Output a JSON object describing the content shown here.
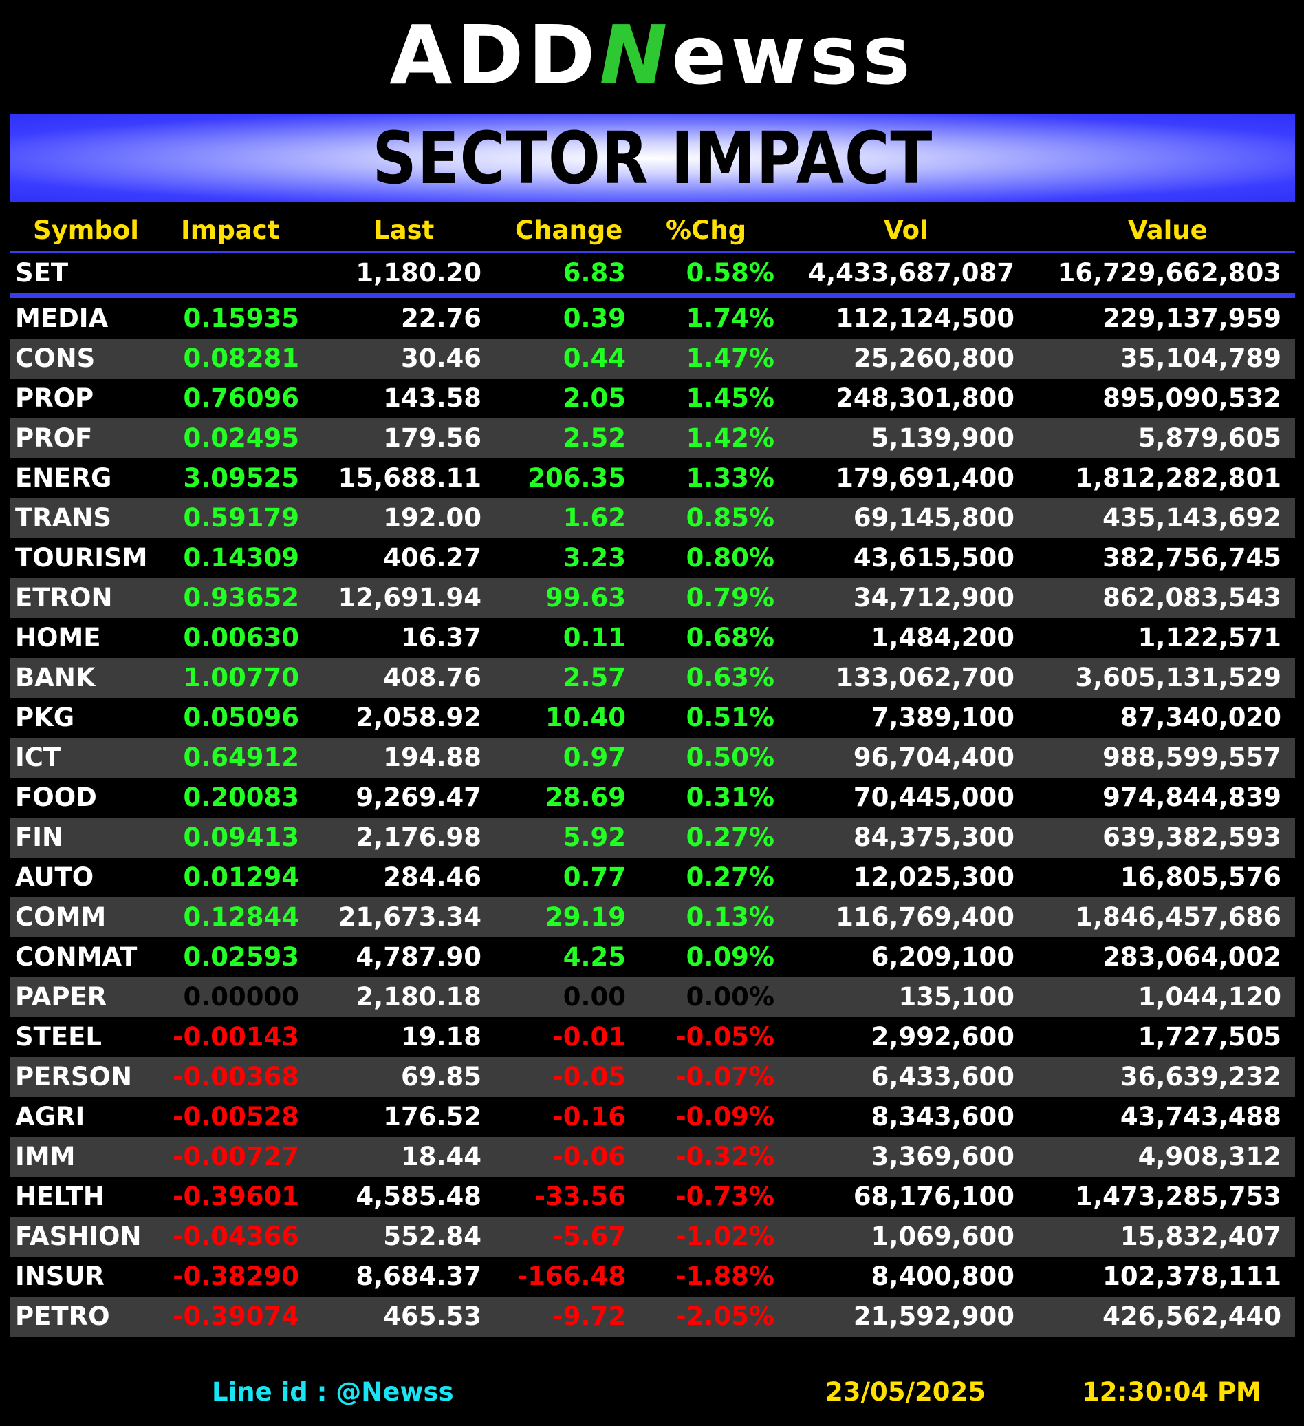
{
  "brand": {
    "part1": "ADD",
    "part2": "N",
    "part3": "ewss"
  },
  "title": "SECTOR IMPACT",
  "columns": [
    "Symbol",
    "Impact",
    "Last",
    "Change",
    "%Chg",
    "Vol",
    "Value"
  ],
  "index_row": {
    "symbol": "SET",
    "impact": "",
    "last": "1,180.20",
    "change": "6.83",
    "pct": "0.58%",
    "vol": "4,433,687,087",
    "value": "16,729,662,803"
  },
  "rows": [
    {
      "symbol": "MEDIA",
      "impact": "0.15935",
      "last": "22.76",
      "change": "0.39",
      "pct": "1.74%",
      "vol": "112,124,500",
      "value": "229,137,959",
      "dir": "pos"
    },
    {
      "symbol": "CONS",
      "impact": "0.08281",
      "last": "30.46",
      "change": "0.44",
      "pct": "1.47%",
      "vol": "25,260,800",
      "value": "35,104,789",
      "dir": "pos"
    },
    {
      "symbol": "PROP",
      "impact": "0.76096",
      "last": "143.58",
      "change": "2.05",
      "pct": "1.45%",
      "vol": "248,301,800",
      "value": "895,090,532",
      "dir": "pos"
    },
    {
      "symbol": "PROF",
      "impact": "0.02495",
      "last": "179.56",
      "change": "2.52",
      "pct": "1.42%",
      "vol": "5,139,900",
      "value": "5,879,605",
      "dir": "pos"
    },
    {
      "symbol": "ENERG",
      "impact": "3.09525",
      "last": "15,688.11",
      "change": "206.35",
      "pct": "1.33%",
      "vol": "179,691,400",
      "value": "1,812,282,801",
      "dir": "pos"
    },
    {
      "symbol": "TRANS",
      "impact": "0.59179",
      "last": "192.00",
      "change": "1.62",
      "pct": "0.85%",
      "vol": "69,145,800",
      "value": "435,143,692",
      "dir": "pos"
    },
    {
      "symbol": "TOURISM",
      "impact": "0.14309",
      "last": "406.27",
      "change": "3.23",
      "pct": "0.80%",
      "vol": "43,615,500",
      "value": "382,756,745",
      "dir": "pos"
    },
    {
      "symbol": "ETRON",
      "impact": "0.93652",
      "last": "12,691.94",
      "change": "99.63",
      "pct": "0.79%",
      "vol": "34,712,900",
      "value": "862,083,543",
      "dir": "pos"
    },
    {
      "symbol": "HOME",
      "impact": "0.00630",
      "last": "16.37",
      "change": "0.11",
      "pct": "0.68%",
      "vol": "1,484,200",
      "value": "1,122,571",
      "dir": "pos"
    },
    {
      "symbol": "BANK",
      "impact": "1.00770",
      "last": "408.76",
      "change": "2.57",
      "pct": "0.63%",
      "vol": "133,062,700",
      "value": "3,605,131,529",
      "dir": "pos"
    },
    {
      "symbol": "PKG",
      "impact": "0.05096",
      "last": "2,058.92",
      "change": "10.40",
      "pct": "0.51%",
      "vol": "7,389,100",
      "value": "87,340,020",
      "dir": "pos"
    },
    {
      "symbol": "ICT",
      "impact": "0.64912",
      "last": "194.88",
      "change": "0.97",
      "pct": "0.50%",
      "vol": "96,704,400",
      "value": "988,599,557",
      "dir": "pos"
    },
    {
      "symbol": "FOOD",
      "impact": "0.20083",
      "last": "9,269.47",
      "change": "28.69",
      "pct": "0.31%",
      "vol": "70,445,000",
      "value": "974,844,839",
      "dir": "pos"
    },
    {
      "symbol": "FIN",
      "impact": "0.09413",
      "last": "2,176.98",
      "change": "5.92",
      "pct": "0.27%",
      "vol": "84,375,300",
      "value": "639,382,593",
      "dir": "pos"
    },
    {
      "symbol": "AUTO",
      "impact": "0.01294",
      "last": "284.46",
      "change": "0.77",
      "pct": "0.27%",
      "vol": "12,025,300",
      "value": "16,805,576",
      "dir": "pos"
    },
    {
      "symbol": "COMM",
      "impact": "0.12844",
      "last": "21,673.34",
      "change": "29.19",
      "pct": "0.13%",
      "vol": "116,769,400",
      "value": "1,846,457,686",
      "dir": "pos"
    },
    {
      "symbol": "CONMAT",
      "impact": "0.02593",
      "last": "4,787.90",
      "change": "4.25",
      "pct": "0.09%",
      "vol": "6,209,100",
      "value": "283,064,002",
      "dir": "pos"
    },
    {
      "symbol": "PAPER",
      "impact": "0.00000",
      "last": "2,180.18",
      "change": "0.00",
      "pct": "0.00%",
      "vol": "135,100",
      "value": "1,044,120",
      "dir": "zero"
    },
    {
      "symbol": "STEEL",
      "impact": "-0.00143",
      "last": "19.18",
      "change": "-0.01",
      "pct": "-0.05%",
      "vol": "2,992,600",
      "value": "1,727,505",
      "dir": "neg"
    },
    {
      "symbol": "PERSON",
      "impact": "-0.00368",
      "last": "69.85",
      "change": "-0.05",
      "pct": "-0.07%",
      "vol": "6,433,600",
      "value": "36,639,232",
      "dir": "neg"
    },
    {
      "symbol": "AGRI",
      "impact": "-0.00528",
      "last": "176.52",
      "change": "-0.16",
      "pct": "-0.09%",
      "vol": "8,343,600",
      "value": "43,743,488",
      "dir": "neg"
    },
    {
      "symbol": "IMM",
      "impact": "-0.00727",
      "last": "18.44",
      "change": "-0.06",
      "pct": "-0.32%",
      "vol": "3,369,600",
      "value": "4,908,312",
      "dir": "neg"
    },
    {
      "symbol": "HELTH",
      "impact": "-0.39601",
      "last": "4,585.48",
      "change": "-33.56",
      "pct": "-0.73%",
      "vol": "68,176,100",
      "value": "1,473,285,753",
      "dir": "neg"
    },
    {
      "symbol": "FASHION",
      "impact": "-0.04366",
      "last": "552.84",
      "change": "-5.67",
      "pct": "-1.02%",
      "vol": "1,069,600",
      "value": "15,832,407",
      "dir": "neg"
    },
    {
      "symbol": "INSUR",
      "impact": "-0.38290",
      "last": "8,684.37",
      "change": "-166.48",
      "pct": "-1.88%",
      "vol": "8,400,800",
      "value": "102,378,111",
      "dir": "neg"
    },
    {
      "symbol": "PETRO",
      "impact": "-0.39074",
      "last": "465.53",
      "change": "-9.72",
      "pct": "-2.05%",
      "vol": "21,592,900",
      "value": "426,562,440",
      "dir": "neg"
    }
  ],
  "footer": {
    "line_id": "Line id  : @Newss",
    "date": "23/05/2025",
    "time": "12:30:04 PM"
  },
  "colors": {
    "positive": "#22ff22",
    "negative": "#ff0000",
    "zero": "#000000",
    "header": "#ffe000",
    "accent": "#3a3cf0",
    "footer_line": "#19e4f4"
  }
}
